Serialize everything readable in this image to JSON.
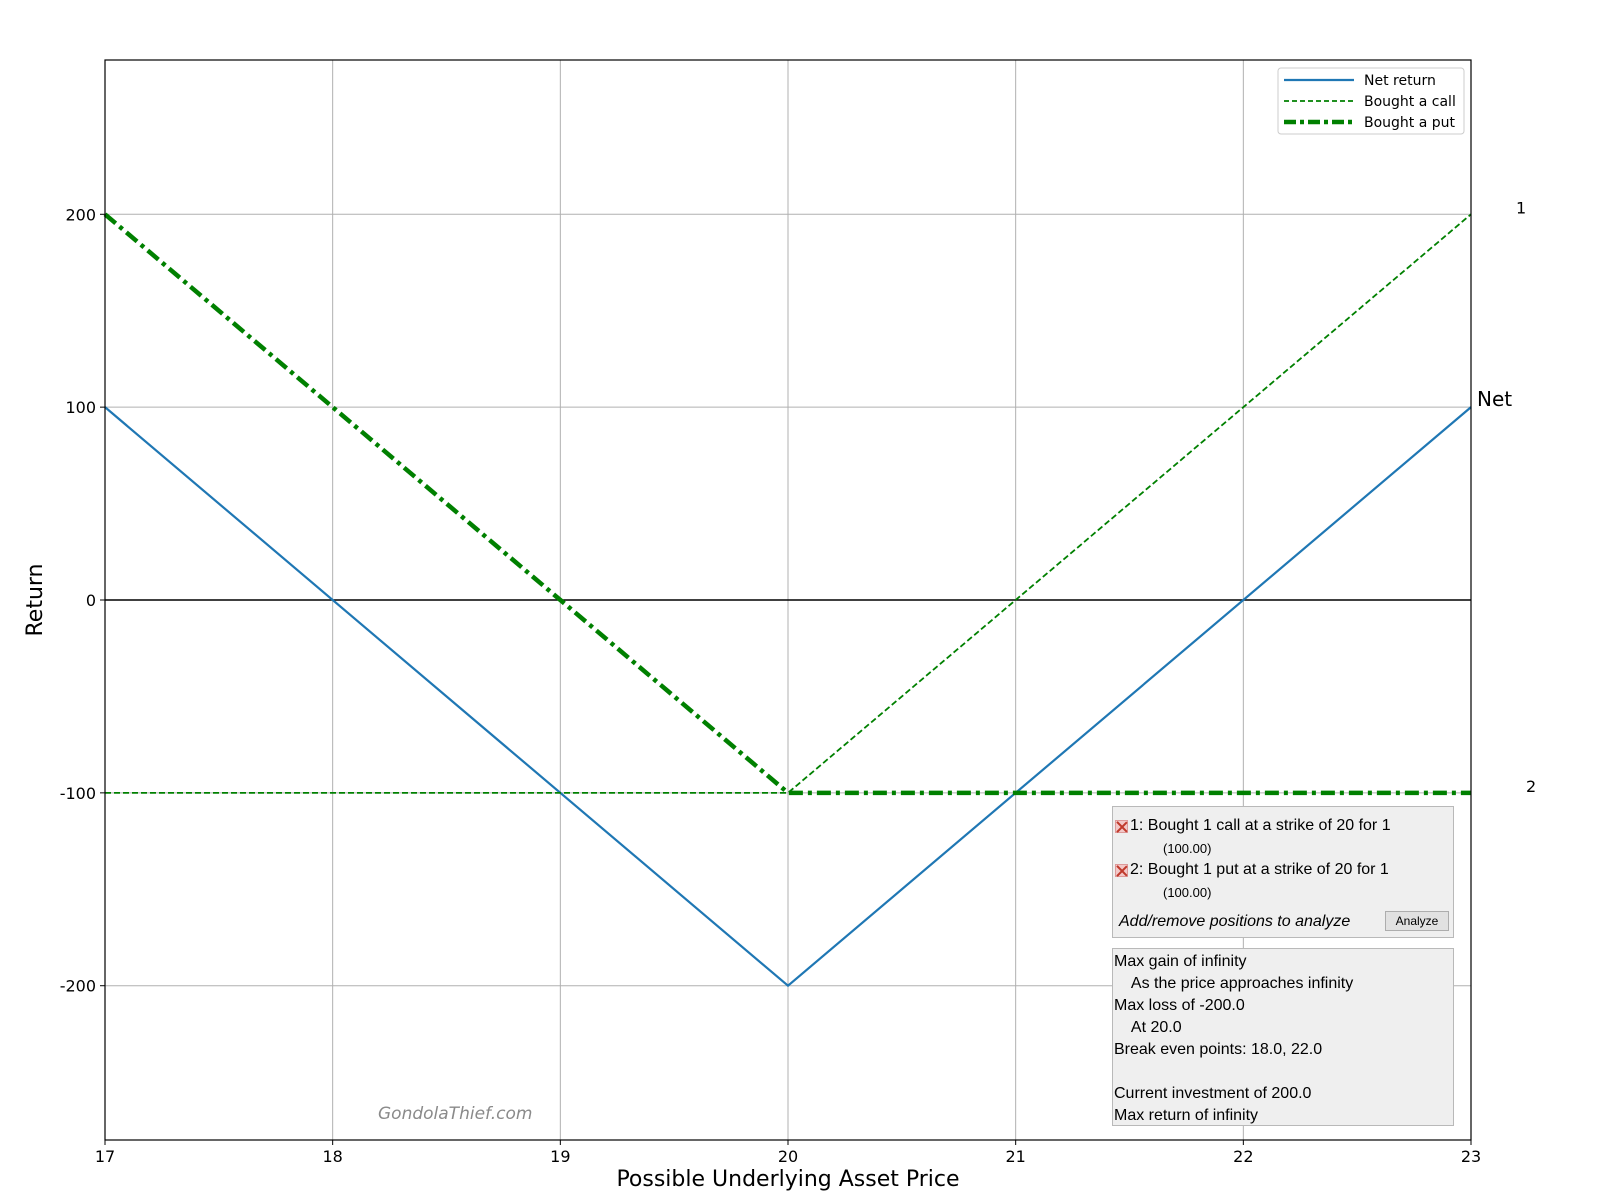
{
  "chart_data": {
    "type": "line",
    "xlabel": "Possible Underlying Asset Price",
    "ylabel": "Return",
    "xlim": [
      17,
      23
    ],
    "ylim": [
      -280,
      280
    ],
    "xticks": [
      17,
      18,
      19,
      20,
      21,
      22,
      23
    ],
    "yticks": [
      -200,
      -100,
      0,
      100,
      200
    ],
    "ytick_labels": [
      "-200",
      "-100",
      "0",
      "100",
      "200"
    ],
    "grid": true,
    "legend_position": "top-right",
    "series": [
      {
        "name": "Net return",
        "style": "solid",
        "color": "#1f77b4",
        "x": [
          17,
          20,
          23
        ],
        "y": [
          100,
          -200,
          100
        ]
      },
      {
        "name": "Bought a call",
        "style": "dashed",
        "color": "#008000",
        "x": [
          17,
          20,
          23
        ],
        "y": [
          -100,
          -100,
          200
        ]
      },
      {
        "name": "Bought a put",
        "style": "dashdot",
        "color": "#008000",
        "x": [
          17,
          20,
          23
        ],
        "y": [
          200,
          -100,
          -100
        ]
      }
    ],
    "end_labels": [
      {
        "text": "1",
        "y": 200
      },
      {
        "text": "Net",
        "y": 100
      },
      {
        "text": "2",
        "y": -100
      }
    ],
    "watermark": "GondolaThief.com"
  },
  "positions": [
    {
      "label": "1: Bought 1 call at a strike of 20 for 1",
      "amount": "(100.00)"
    },
    {
      "label": "2: Bought 1 put at a strike of 20 for 1",
      "amount": "(100.00)"
    }
  ],
  "hint": "Add/remove positions to analyze",
  "analyze_label": "Analyze",
  "stats": [
    "Max gain of infinity",
    "    As the price approaches infinity",
    "Max loss of -200.0",
    "    At 20.0",
    "Break even points: 18.0, 22.0",
    "",
    "Current investment of 200.0",
    "Max return of infinity"
  ]
}
